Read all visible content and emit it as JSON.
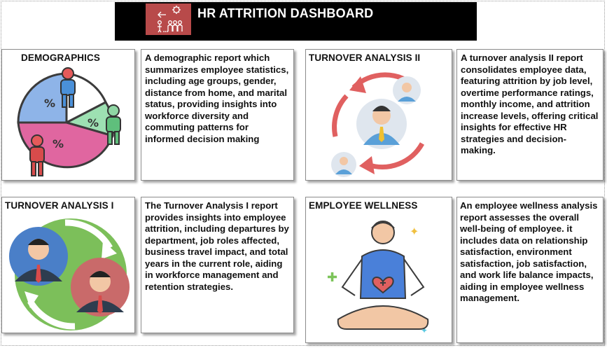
{
  "header": {
    "title": "HR ATTRITION DASHBOARD",
    "logo_icon": "hr-attrition-logo-icon",
    "colors": {
      "bar": "#000000",
      "logo_bg": "#b84a4a"
    }
  },
  "sections": [
    {
      "title": "DEMOGRAPHICS",
      "icon": "demographics-pie-icon",
      "description": "A demographic report which summarizes employee statistics, including age groups, gender, distance from home, and marital status, providing insights into workforce diversity and commuting patterns for informed decision making"
    },
    {
      "title": "TURNOVER ANALYSIS II",
      "icon": "turnover-cycle-icon",
      "description": "A turnover analysis  II report consolidates employee data, featuring attrition by job level, overtime performance ratings, monthly income, and attrition increase levels, offering critical insights for effective HR strategies and decision-making."
    },
    {
      "title": "TURNOVER ANALYSIS I",
      "icon": "employee-exchange-icon",
      "description": "The Turnover Analysis I report provides insights into employee attrition, including departures by department, job roles affected, business travel impact, and total years in the current role, aiding in workforce management and retention strategies."
    },
    {
      "title": "EMPLOYEE WELLNESS",
      "icon": "wellness-meditation-icon",
      "description": "An employee wellness analysis report assesses the overall well-being of employee. it includes data on relationship satisfaction, environment satisfaction, job satisfaction, and work life balance impacts, aiding in employee wellness management."
    }
  ]
}
